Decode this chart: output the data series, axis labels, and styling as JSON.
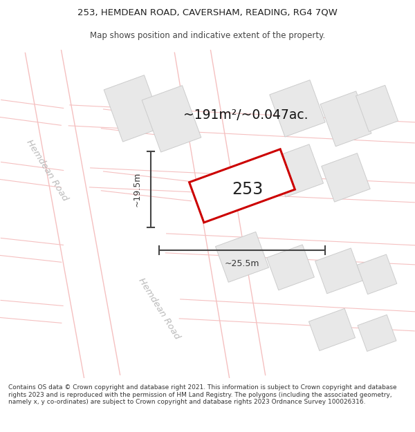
{
  "title_line1": "253, HEMDEAN ROAD, CAVERSHAM, READING, RG4 7QW",
  "title_line2": "Map shows position and indicative extent of the property.",
  "footer_text": "Contains OS data © Crown copyright and database right 2021. This information is subject to Crown copyright and database rights 2023 and is reproduced with the permission of HM Land Registry. The polygons (including the associated geometry, namely x, y co-ordinates) are subject to Crown copyright and database rights 2023 Ordnance Survey 100026316.",
  "area_label": "~191m²/~0.047ac.",
  "property_number": "253",
  "width_label": "~25.5m",
  "height_label": "~19.5m",
  "road_label_1": "Hemdean Road",
  "road_label_2": "Hemdean Road",
  "bg_color": "#ffffff",
  "map_bg": "#ffffff",
  "road_line_color": "#f5c0c0",
  "building_fill": "#e8e8e8",
  "building_edge": "#cccccc",
  "property_fill": "#ffffff",
  "property_edge": "#cc0000",
  "road_label_color": "#bbbbbb",
  "dim_line_color": "#444444",
  "title_fontsize": 9.5,
  "footer_fontsize": 6.8
}
